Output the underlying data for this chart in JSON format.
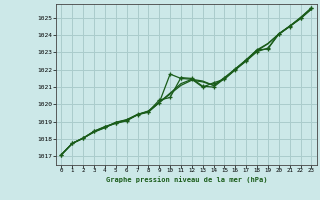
{
  "title": "Graphe pression niveau de la mer (hPa)",
  "bg_color": "#cce8e8",
  "plot_bg": "#cce8e8",
  "grid_color": "#aacccc",
  "line_color": "#1a5c1a",
  "xlim": [
    -0.5,
    23.5
  ],
  "ylim": [
    1016.5,
    1025.8
  ],
  "xticks": [
    0,
    1,
    2,
    3,
    4,
    5,
    6,
    7,
    8,
    9,
    10,
    11,
    12,
    13,
    14,
    15,
    16,
    17,
    18,
    19,
    20,
    21,
    22,
    23
  ],
  "yticks": [
    1017,
    1018,
    1019,
    1020,
    1021,
    1022,
    1023,
    1024,
    1025
  ],
  "s_smooth": [
    1017.1,
    1017.75,
    1018.05,
    1018.4,
    1018.65,
    1018.95,
    1019.1,
    1019.4,
    1019.6,
    1020.1,
    1020.6,
    1021.1,
    1021.4,
    1021.3,
    1021.1,
    1021.5,
    1022.0,
    1022.55,
    1023.1,
    1023.5,
    1024.05,
    1024.5,
    1024.95,
    1025.5
  ],
  "s_line2": [
    1017.1,
    1017.75,
    1018.05,
    1018.42,
    1018.67,
    1018.97,
    1019.12,
    1019.42,
    1019.62,
    1020.12,
    1020.65,
    1021.2,
    1021.45,
    1021.35,
    1021.1,
    1021.55,
    1022.05,
    1022.58,
    1023.15,
    1023.52,
    1024.07,
    1024.52,
    1024.97,
    1025.52
  ],
  "s_marked1": [
    1017.1,
    1017.75,
    1018.05,
    1018.45,
    1018.7,
    1018.9,
    1019.05,
    1019.4,
    1019.55,
    1020.1,
    1021.75,
    1021.5,
    1021.45,
    1021.0,
    1021.25,
    1021.45,
    1022.0,
    1022.5,
    1023.05,
    1023.25,
    1024.05,
    1024.5,
    1025.0,
    1025.55
  ],
  "s_marked2": [
    1017.1,
    1017.75,
    1018.05,
    1018.45,
    1018.72,
    1018.93,
    1019.08,
    1019.42,
    1019.58,
    1020.25,
    1020.4,
    1021.55,
    1021.5,
    1021.05,
    1021.0,
    1021.5,
    1022.05,
    1022.55,
    1023.15,
    1023.2,
    1024.08,
    1024.52,
    1025.02,
    1025.58
  ]
}
